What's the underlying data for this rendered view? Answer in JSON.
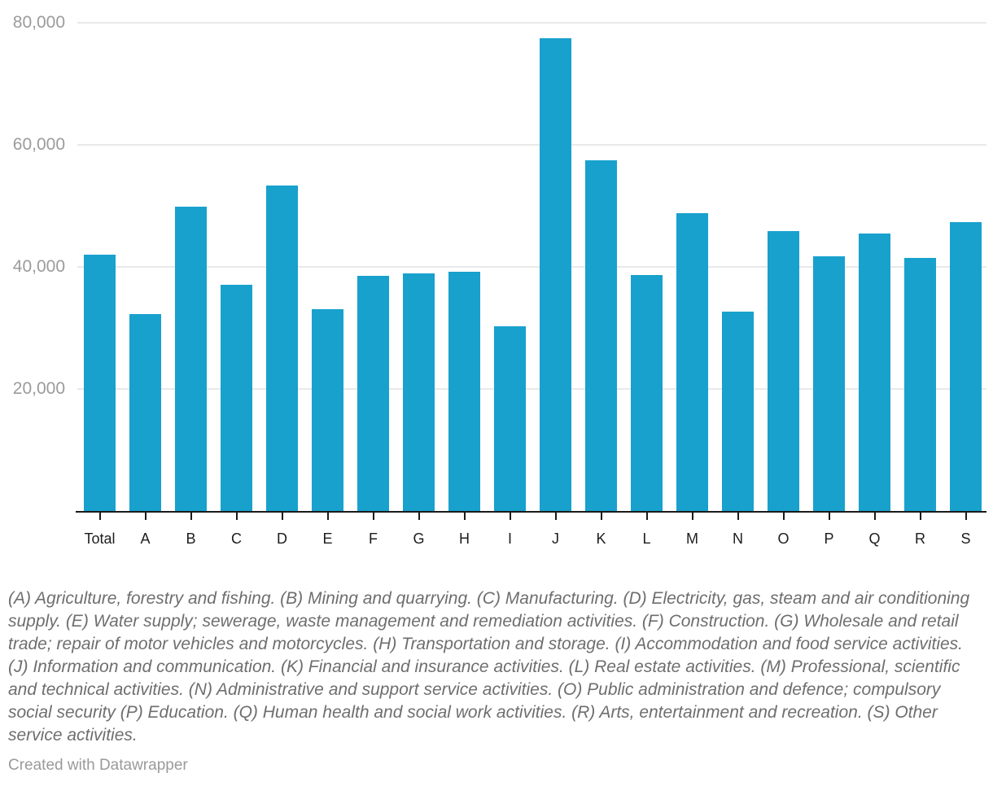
{
  "chart_data": {
    "type": "bar",
    "categories": [
      "Total",
      "A",
      "B",
      "C",
      "D",
      "E",
      "F",
      "G",
      "H",
      "I",
      "J",
      "K",
      "L",
      "M",
      "N",
      "O",
      "P",
      "Q",
      "R",
      "S"
    ],
    "values": [
      42000,
      32300,
      49800,
      37100,
      53300,
      33100,
      38500,
      38900,
      39200,
      30300,
      77400,
      57500,
      38700,
      48800,
      32700,
      45800,
      41700,
      45400,
      41400,
      47300
    ],
    "title": "",
    "xlabel": "",
    "ylabel": "",
    "ylim": [
      0,
      80000
    ],
    "yticks": [
      20000,
      40000,
      60000,
      80000
    ],
    "ytick_labels": [
      "20,000",
      "40,000",
      "60,000",
      "80,000"
    ],
    "grid": true,
    "legend": "none",
    "bar_color": "#18a1cd"
  },
  "colors": {
    "bar": "#18a1cd",
    "grid": "#e9e9e9",
    "axis": "#1a1a1a",
    "y_label_text": "#9b9b9b",
    "x_label_text": "#1d1d1d",
    "footnote_text": "#6e6e6e",
    "credit_text": "#9a9a9a"
  },
  "footnote": "(A) Agriculture, forestry and fishing. (B) Mining and quarrying. (C) Manufacturing. (D) Electricity, gas, steam and air conditioning supply. (E) Water supply; sewerage, waste management and remediation activities. (F) Construction. (G) Wholesale and retail trade; repair of motor vehicles and motorcycles. (H) Transportation and storage. (I) Accommodation and food service activities. (J) Information and communication. (K) Financial and insurance activities. (L) Real estate activities. (M) Professional, scientific and technical activities. (N) Administrative and support service activities. (O) Public administration and defence; compulsory social security (P) Education. (Q) Human health and social work activities. (R) Arts, entertainment and recreation. (S) Other service activities.",
  "credit": "Created with Datawrapper"
}
